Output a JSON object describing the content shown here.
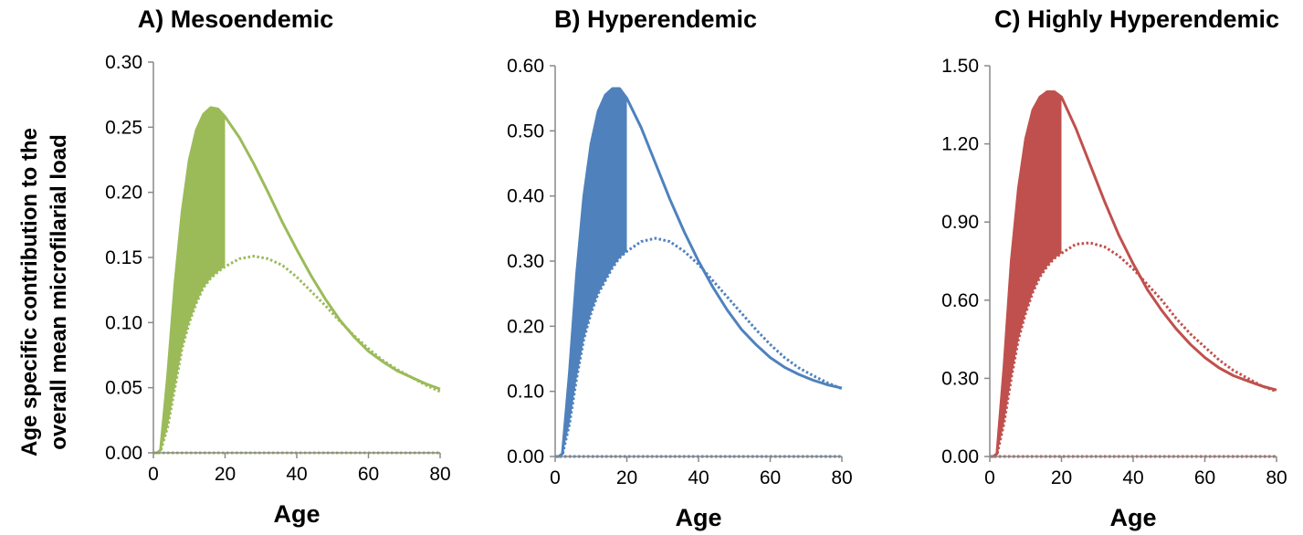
{
  "ylabel_lines": [
    "Age specific contribution to the",
    "overall mean microfilarial load"
  ],
  "chart_data": [
    {
      "type": "line",
      "title": "A) Mesoendemic",
      "xlabel": "Age",
      "xlim": [
        0,
        80
      ],
      "ylim": [
        0,
        0.3
      ],
      "xticks": [
        "0",
        "20",
        "40",
        "60",
        "80"
      ],
      "yticks": [
        "0.00",
        "0.05",
        "0.10",
        "0.15",
        "0.20",
        "0.25",
        "0.30"
      ],
      "color": "#9BBB59",
      "shaded_region": {
        "x_from": 0,
        "x_to": 20,
        "between": [
          "solid",
          "dotted"
        ]
      },
      "series": [
        {
          "style": "solid",
          "x": [
            0,
            1,
            2,
            4,
            6,
            8,
            10,
            12,
            14,
            16,
            18,
            20,
            24,
            28,
            32,
            36,
            40,
            44,
            48,
            52,
            56,
            60,
            64,
            68,
            72,
            76,
            80
          ],
          "values": [
            0,
            0,
            0.002,
            0.06,
            0.13,
            0.185,
            0.225,
            0.248,
            0.26,
            0.265,
            0.264,
            0.258,
            0.242,
            0.222,
            0.2,
            0.177,
            0.156,
            0.136,
            0.118,
            0.102,
            0.089,
            0.078,
            0.07,
            0.063,
            0.058,
            0.053,
            0.049
          ]
        },
        {
          "style": "dotted",
          "x": [
            0,
            1,
            2,
            4,
            6,
            8,
            10,
            12,
            14,
            16,
            18,
            20,
            24,
            28,
            32,
            36,
            40,
            44,
            48,
            52,
            56,
            60,
            64,
            68,
            72,
            76,
            80
          ],
          "values": [
            0,
            0,
            0.001,
            0.02,
            0.05,
            0.08,
            0.1,
            0.115,
            0.127,
            0.134,
            0.139,
            0.143,
            0.149,
            0.151,
            0.149,
            0.144,
            0.135,
            0.124,
            0.113,
            0.101,
            0.09,
            0.08,
            0.071,
            0.064,
            0.058,
            0.052,
            0.047
          ]
        },
        {
          "style": "dotted",
          "x": [
            0,
            80
          ],
          "values": [
            0,
            0
          ]
        }
      ]
    },
    {
      "type": "line",
      "title": "B) Hyperendemic",
      "xlabel": "Age",
      "xlim": [
        0,
        80
      ],
      "ylim": [
        0,
        0.6
      ],
      "xticks": [
        "0",
        "20",
        "40",
        "60",
        "80"
      ],
      "yticks": [
        "0.00",
        "0.10",
        "0.20",
        "0.30",
        "0.40",
        "0.50",
        "0.60"
      ],
      "color": "#4F81BD",
      "shaded_region": {
        "x_from": 0,
        "x_to": 20,
        "between": [
          "solid",
          "dotted"
        ]
      },
      "series": [
        {
          "style": "solid",
          "x": [
            0,
            1,
            2,
            4,
            6,
            8,
            10,
            12,
            14,
            16,
            18,
            20,
            24,
            28,
            32,
            36,
            40,
            44,
            48,
            52,
            56,
            60,
            64,
            68,
            72,
            76,
            80
          ],
          "values": [
            0,
            0,
            0.004,
            0.13,
            0.28,
            0.4,
            0.48,
            0.53,
            0.555,
            0.565,
            0.565,
            0.55,
            0.505,
            0.45,
            0.395,
            0.345,
            0.3,
            0.26,
            0.225,
            0.195,
            0.172,
            0.152,
            0.137,
            0.126,
            0.117,
            0.11,
            0.105
          ]
        },
        {
          "style": "dotted",
          "x": [
            0,
            1,
            2,
            4,
            6,
            8,
            10,
            12,
            14,
            16,
            18,
            20,
            24,
            28,
            32,
            36,
            40,
            44,
            48,
            52,
            56,
            60,
            64,
            68,
            72,
            76,
            80
          ],
          "values": [
            0,
            0,
            0.002,
            0.05,
            0.12,
            0.18,
            0.22,
            0.25,
            0.27,
            0.29,
            0.305,
            0.315,
            0.33,
            0.335,
            0.33,
            0.315,
            0.295,
            0.27,
            0.245,
            0.22,
            0.195,
            0.172,
            0.152,
            0.136,
            0.124,
            0.113,
            0.104
          ]
        },
        {
          "style": "dotted",
          "x": [
            0,
            80
          ],
          "values": [
            0,
            0
          ]
        }
      ]
    },
    {
      "type": "line",
      "title": "C) Highly Hyperendemic",
      "xlabel": "Age",
      "xlim": [
        0,
        80
      ],
      "ylim": [
        0,
        1.5
      ],
      "xticks": [
        "0",
        "20",
        "40",
        "60",
        "80"
      ],
      "yticks": [
        "0.00",
        "0.30",
        "0.60",
        "0.90",
        "1.20",
        "1.50"
      ],
      "color": "#C0504D",
      "shaded_region": {
        "x_from": 0,
        "x_to": 20,
        "between": [
          "solid",
          "dotted"
        ]
      },
      "series": [
        {
          "style": "solid",
          "x": [
            0,
            1,
            2,
            4,
            6,
            8,
            10,
            12,
            14,
            16,
            18,
            20,
            24,
            28,
            32,
            36,
            40,
            44,
            48,
            52,
            56,
            60,
            64,
            68,
            72,
            76,
            80
          ],
          "values": [
            0,
            0,
            0.01,
            0.35,
            0.75,
            1.03,
            1.22,
            1.33,
            1.38,
            1.4,
            1.4,
            1.38,
            1.26,
            1.12,
            0.98,
            0.85,
            0.74,
            0.64,
            0.56,
            0.49,
            0.43,
            0.38,
            0.34,
            0.31,
            0.29,
            0.27,
            0.255
          ]
        },
        {
          "style": "dotted",
          "x": [
            0,
            1,
            2,
            4,
            6,
            8,
            10,
            12,
            14,
            16,
            18,
            20,
            24,
            28,
            32,
            36,
            40,
            44,
            48,
            52,
            56,
            60,
            64,
            68,
            72,
            76,
            80
          ],
          "values": [
            0,
            0,
            0.005,
            0.13,
            0.3,
            0.45,
            0.55,
            0.63,
            0.69,
            0.73,
            0.76,
            0.78,
            0.815,
            0.82,
            0.805,
            0.77,
            0.72,
            0.66,
            0.6,
            0.53,
            0.47,
            0.42,
            0.37,
            0.33,
            0.3,
            0.27,
            0.25
          ]
        },
        {
          "style": "dotted",
          "x": [
            0,
            80
          ],
          "values": [
            0,
            0
          ]
        }
      ]
    }
  ]
}
